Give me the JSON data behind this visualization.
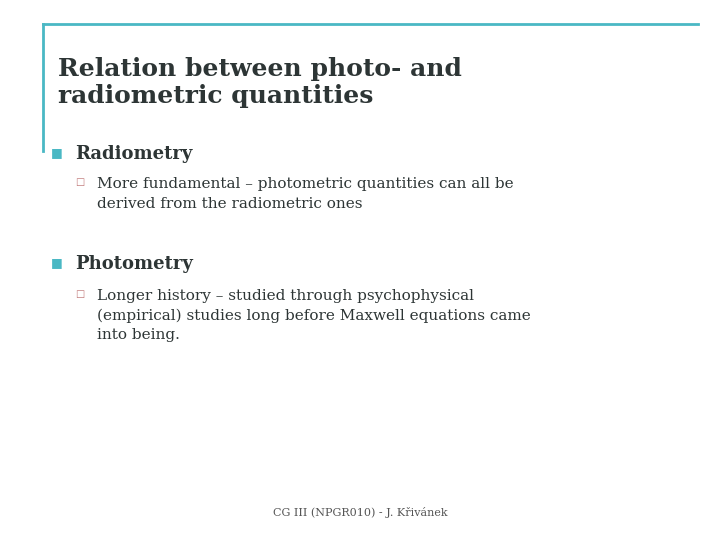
{
  "title_line1": "Relation between photo- and",
  "title_line2": "radiometric quantities",
  "title_color": "#2d3535",
  "title_fontsize": 18,
  "accent_color": "#4ab8c4",
  "bullet1_header": "Radiometry",
  "bullet1_color": "#4ab8c4",
  "bullet1_sub_marker_color": "#c07878",
  "bullet1_text": "More fundamental – photometric quantities can all be\nderived from the radiometric ones",
  "bullet2_header": "Photometry",
  "bullet2_color": "#4ab8c4",
  "bullet2_sub_marker_color": "#c07878",
  "bullet2_text": "Longer history – studied through psychophysical\n(empirical) studies long before Maxwell equations came\ninto being.",
  "footer": "CG III (NPGR010) - J. Křivánek",
  "bg_color": "#ffffff",
  "header_fontsize": 13,
  "body_fontsize": 11,
  "footer_fontsize": 8
}
